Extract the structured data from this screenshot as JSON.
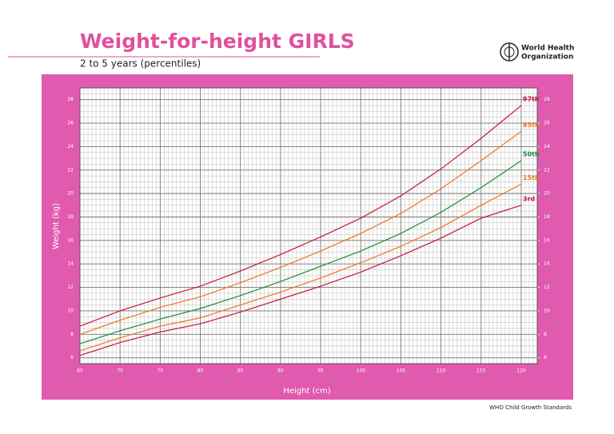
{
  "chart_data": {
    "type": "line",
    "title": "Weight-for-height GIRLS",
    "subtitle": "2 to 5 years (percentiles)",
    "logo_text": [
      "World Health",
      "Organization"
    ],
    "source": "WHO Child Growth Standards",
    "xlabel": "Height (cm)",
    "ylabel": "Weight (kg)",
    "x": [
      65,
      70,
      75,
      80,
      85,
      90,
      95,
      100,
      105,
      110,
      115,
      120
    ],
    "xlim": [
      65,
      122
    ],
    "xticks": [
      65,
      70,
      75,
      80,
      85,
      90,
      95,
      100,
      105,
      110,
      115,
      120
    ],
    "ylim": [
      5.5,
      29
    ],
    "yticks": [
      6,
      8,
      10,
      12,
      14,
      16,
      18,
      20,
      22,
      24,
      26,
      28
    ],
    "y2lim": [
      5.5,
      29
    ],
    "y2ticks": [
      6,
      8,
      10,
      12,
      14,
      16,
      18,
      20,
      22,
      24,
      26,
      28
    ],
    "grid": true,
    "series": [
      {
        "name": "97th",
        "color": "#c8143c",
        "values": [
          8.7,
          10.0,
          11.1,
          12.1,
          13.4,
          14.8,
          16.3,
          17.9,
          19.8,
          22.1,
          24.7,
          27.5
        ]
      },
      {
        "name": "85th",
        "color": "#ee7422",
        "values": [
          8.0,
          9.2,
          10.3,
          11.2,
          12.4,
          13.7,
          15.1,
          16.6,
          18.3,
          20.4,
          22.8,
          25.3
        ]
      },
      {
        "name": "50th",
        "color": "#1a8a3a",
        "values": [
          7.2,
          8.3,
          9.3,
          10.2,
          11.3,
          12.5,
          13.8,
          15.1,
          16.6,
          18.4,
          20.5,
          22.8
        ]
      },
      {
        "name": "15th",
        "color": "#ee7422",
        "values": [
          6.6,
          7.7,
          8.7,
          9.4,
          10.5,
          11.6,
          12.8,
          14.1,
          15.5,
          17.1,
          19.0,
          20.8
        ]
      },
      {
        "name": "3rd",
        "color": "#c8143c",
        "values": [
          6.2,
          7.3,
          8.2,
          8.9,
          9.9,
          11.0,
          12.1,
          13.3,
          14.7,
          16.2,
          17.9,
          19.0
        ]
      }
    ]
  }
}
